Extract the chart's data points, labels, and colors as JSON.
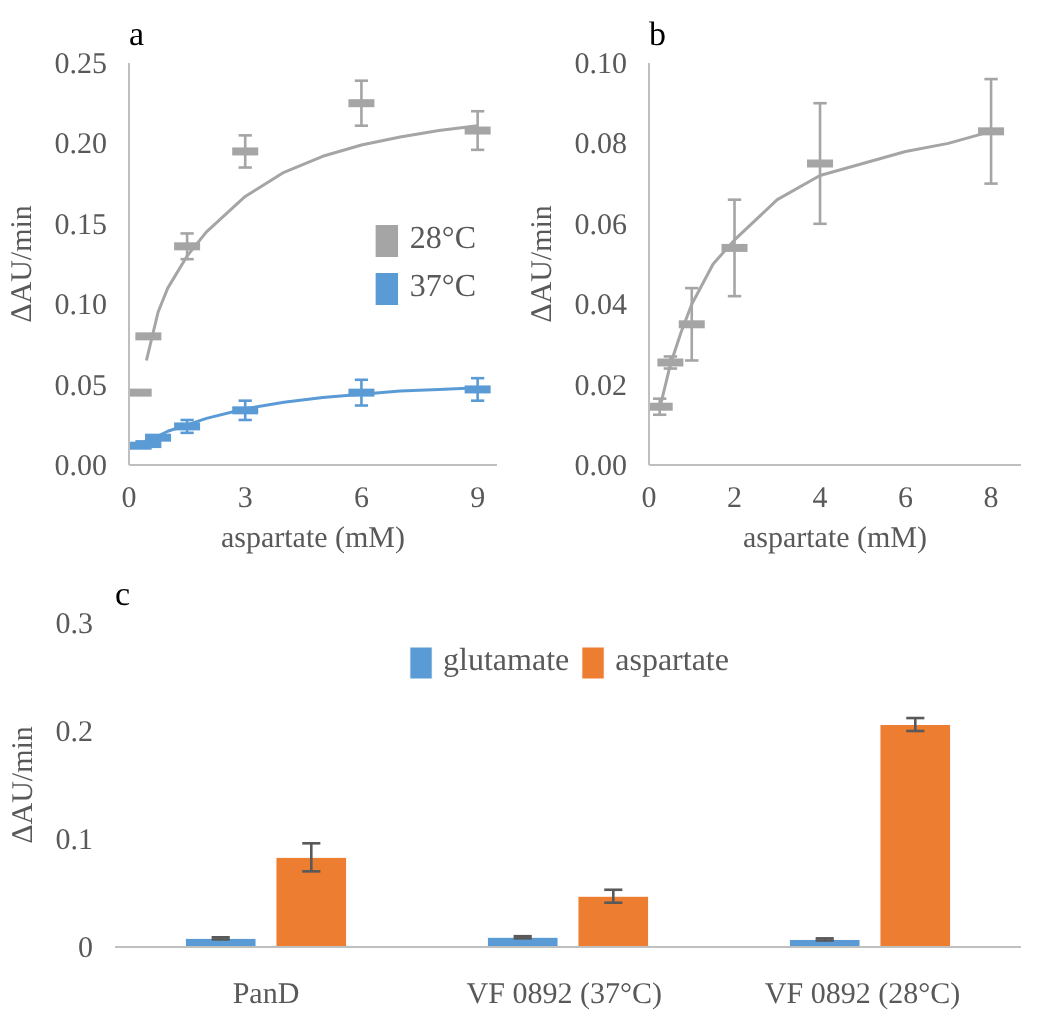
{
  "chart_data": [
    {
      "type": "scatter",
      "title": "a",
      "xlabel": "aspartate (mM)",
      "ylabel": "ΔAU/min",
      "xlim": [
        0,
        9.5
      ],
      "ylim": [
        0,
        0.25
      ],
      "xticks": [
        0,
        3,
        6,
        9
      ],
      "yticks": [
        {
          "value": 0,
          "label": "0.00"
        },
        {
          "value": 0.05,
          "label": "0.05"
        },
        {
          "value": 0.1,
          "label": "0.10"
        },
        {
          "value": 0.15,
          "label": "0.15"
        },
        {
          "value": 0.2,
          "label": "0.20"
        },
        {
          "value": 0.25,
          "label": "0.25"
        }
      ],
      "grid": false,
      "legend": "right",
      "series": [
        {
          "name": "28°C",
          "color": "#a5a5a5",
          "x": [
            0.25,
            0.5,
            1.5,
            3,
            6,
            9
          ],
          "values": [
            0.045,
            0.08,
            0.136,
            0.195,
            0.225,
            0.208
          ],
          "errors": [
            null,
            null,
            0.008,
            0.01,
            0.014,
            0.012
          ]
        },
        {
          "name": "37°C",
          "color": "#5b9bd5",
          "x": [
            0.25,
            0.5,
            0.75,
            1.5,
            3,
            6,
            9
          ],
          "values": [
            0.012,
            0.013,
            0.017,
            0.024,
            0.034,
            0.045,
            0.047
          ],
          "errors": [
            null,
            null,
            null,
            0.004,
            0.006,
            0.008,
            0.007
          ]
        },
        {
          "type": "line",
          "color": "#a5a5a5",
          "x": [
            0.45,
            0.75,
            1,
            1.5,
            2,
            3,
            4,
            5,
            6,
            7,
            8,
            9
          ],
          "values": [
            0.065,
            0.095,
            0.11,
            0.13,
            0.145,
            0.167,
            0.182,
            0.192,
            0.199,
            0.204,
            0.208,
            0.211
          ]
        },
        {
          "type": "line",
          "color": "#5b9bd5",
          "x": [
            0.25,
            0.5,
            1,
            1.5,
            2,
            3,
            4,
            5,
            6,
            7,
            8,
            9
          ],
          "values": [
            0.012,
            0.015,
            0.021,
            0.025,
            0.029,
            0.035,
            0.039,
            0.042,
            0.044,
            0.046,
            0.047,
            0.048
          ]
        }
      ]
    },
    {
      "type": "scatter",
      "title": "b",
      "xlabel": "aspartate (mM)",
      "ylabel": "ΔAU/min",
      "xlim": [
        0,
        8.7
      ],
      "ylim": [
        0,
        0.1
      ],
      "xticks": [
        0,
        2,
        4,
        6,
        8
      ],
      "yticks": [
        {
          "value": 0,
          "label": "0.00"
        },
        {
          "value": 0.02,
          "label": "0.02"
        },
        {
          "value": 0.04,
          "label": "0.04"
        },
        {
          "value": 0.06,
          "label": "0.06"
        },
        {
          "value": 0.08,
          "label": "0.08"
        },
        {
          "value": 0.1,
          "label": "0.10"
        }
      ],
      "grid": false,
      "series": [
        {
          "color": "#a5a5a5",
          "x": [
            0.25,
            0.5,
            1,
            2,
            4,
            8
          ],
          "values": [
            0.0145,
            0.0255,
            0.035,
            0.054,
            0.075,
            0.083
          ],
          "errors": [
            0.002,
            0.0015,
            0.009,
            0.012,
            0.015,
            0.013
          ]
        },
        {
          "type": "line",
          "color": "#a5a5a5",
          "x": [
            0.25,
            0.5,
            0.75,
            1,
            1.5,
            2,
            3,
            4,
            5,
            6,
            7,
            8
          ],
          "values": [
            0.014,
            0.025,
            0.033,
            0.04,
            0.05,
            0.056,
            0.066,
            0.072,
            0.075,
            0.078,
            0.08,
            0.083
          ]
        }
      ]
    },
    {
      "type": "bar",
      "title": "c",
      "ylabel": "ΔAU/min",
      "categories": [
        "PanD",
        "VF  0892 (37°C)",
        "VF  0892  (28°C)"
      ],
      "ylim": [
        0,
        0.3
      ],
      "yticks": [
        0,
        0.1,
        0.2,
        0.3
      ],
      "grid": false,
      "legend": "top",
      "series": [
        {
          "name": "glutamate",
          "color": "#5b9bd5",
          "values": [
            0.008,
            0.009,
            0.007
          ],
          "errors": [
            0.001,
            0.001,
            0.001
          ]
        },
        {
          "name": "aspartate",
          "color": "#ed7d31",
          "values": [
            0.083,
            0.047,
            0.206
          ],
          "errors": [
            0.013,
            0.006,
            0.006
          ]
        }
      ]
    }
  ]
}
